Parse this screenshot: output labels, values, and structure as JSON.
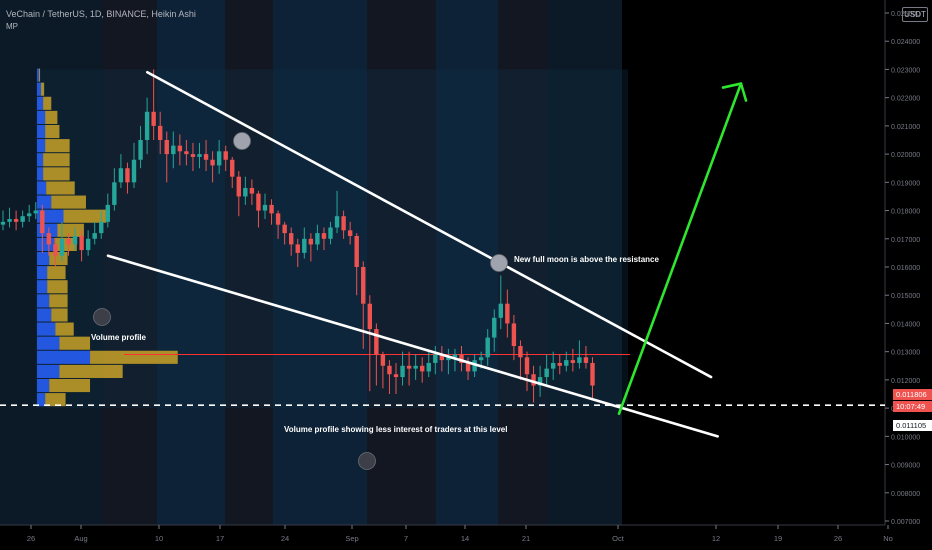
{
  "header": {
    "title": "VeChain / TetherUS, 1D, BINANCE, Heikin Ashi",
    "indicator": "MP",
    "currency_badge": "USDT"
  },
  "annotations": {
    "volume_profile": "Volume profile",
    "full_moon": "New full moon is above the resistance",
    "less_interest": "Volume profile showing less interest of traders at this level"
  },
  "price_tags": {
    "last_price": "0.011806",
    "countdown": "10:07:49",
    "dashed_level": "0.011105"
  },
  "colors": {
    "bull": "#26a69a",
    "bear": "#ef5350",
    "trendline": "#ffffff",
    "projection_arrow": "#2ee62e",
    "poc_line": "#ff3030",
    "profile_up": "#2962ff",
    "profile_down": "#c9a227"
  },
  "chart_data": {
    "type": "candlestick",
    "style": "Heikin Ashi",
    "symbol": "VeChain / TetherUS",
    "timeframe": "1D",
    "exchange": "BINANCE",
    "x_tick_labels": [
      "26",
      "Aug",
      "10",
      "17",
      "24",
      "Sep",
      "7",
      "14",
      "21",
      "Oct",
      "12",
      "19",
      "26",
      "No"
    ],
    "y_tick_labels": [
      "0.025000",
      "0.024000",
      "0.023000",
      "0.022000",
      "0.021000",
      "0.020000",
      "0.019000",
      "0.018000",
      "0.017000",
      "0.016000",
      "0.015000",
      "0.014000",
      "0.013000",
      "0.012000",
      "0.011000",
      "0.010000",
      "0.009000",
      "0.008000",
      "0.007000"
    ],
    "ylim": [
      0.0069,
      0.0262
    ],
    "candles": [
      [
        0.0175,
        0.0176,
        0.018,
        0.0173
      ],
      [
        0.0176,
        0.0177,
        0.0181,
        0.0174
      ],
      [
        0.0177,
        0.0176,
        0.018,
        0.0173
      ],
      [
        0.0176,
        0.0178,
        0.018,
        0.0174
      ],
      [
        0.0178,
        0.0179,
        0.0182,
        0.0176
      ],
      [
        0.0179,
        0.018,
        0.0183,
        0.0177
      ],
      [
        0.018,
        0.0172,
        0.0182,
        0.0165
      ],
      [
        0.0172,
        0.0168,
        0.0174,
        0.0164
      ],
      [
        0.0168,
        0.0164,
        0.017,
        0.016
      ],
      [
        0.0164,
        0.017,
        0.0176,
        0.0162
      ],
      [
        0.017,
        0.0168,
        0.0172,
        0.0164
      ],
      [
        0.0168,
        0.0171,
        0.0174,
        0.0166
      ],
      [
        0.0171,
        0.0166,
        0.0173,
        0.0162
      ],
      [
        0.0166,
        0.017,
        0.0173,
        0.0164
      ],
      [
        0.017,
        0.0172,
        0.0176,
        0.0168
      ],
      [
        0.0172,
        0.0176,
        0.018,
        0.017
      ],
      [
        0.0176,
        0.0182,
        0.0186,
        0.0174
      ],
      [
        0.0182,
        0.019,
        0.0195,
        0.018
      ],
      [
        0.019,
        0.0195,
        0.02,
        0.0188
      ],
      [
        0.0195,
        0.019,
        0.0197,
        0.0186
      ],
      [
        0.019,
        0.0198,
        0.0204,
        0.0188
      ],
      [
        0.0198,
        0.0205,
        0.021,
        0.0195
      ],
      [
        0.0205,
        0.0215,
        0.022,
        0.02
      ],
      [
        0.0215,
        0.021,
        0.023,
        0.0205
      ],
      [
        0.021,
        0.0205,
        0.0215,
        0.02
      ],
      [
        0.0205,
        0.02,
        0.0208,
        0.019
      ],
      [
        0.02,
        0.0203,
        0.0208,
        0.0195
      ],
      [
        0.0203,
        0.0201,
        0.0207,
        0.0196
      ],
      [
        0.0201,
        0.02,
        0.0205,
        0.0196
      ],
      [
        0.02,
        0.0199,
        0.0204,
        0.0194
      ],
      [
        0.0199,
        0.02,
        0.0204,
        0.0195
      ],
      [
        0.02,
        0.0198,
        0.0205,
        0.0194
      ],
      [
        0.0198,
        0.0196,
        0.0201,
        0.019
      ],
      [
        0.0196,
        0.0201,
        0.0205,
        0.0193
      ],
      [
        0.0201,
        0.0198,
        0.0203,
        0.0194
      ],
      [
        0.0198,
        0.0192,
        0.0199,
        0.0188
      ],
      [
        0.0192,
        0.0185,
        0.0194,
        0.0178
      ],
      [
        0.0185,
        0.0188,
        0.0192,
        0.0182
      ],
      [
        0.0188,
        0.0186,
        0.0191,
        0.0182
      ],
      [
        0.0186,
        0.018,
        0.0187,
        0.0174
      ],
      [
        0.018,
        0.0182,
        0.0186,
        0.0177
      ],
      [
        0.0182,
        0.0179,
        0.0184,
        0.0175
      ],
      [
        0.0179,
        0.0175,
        0.018,
        0.017
      ],
      [
        0.0175,
        0.0172,
        0.0176,
        0.0168
      ],
      [
        0.0172,
        0.0168,
        0.0174,
        0.0164
      ],
      [
        0.0168,
        0.0165,
        0.017,
        0.016
      ],
      [
        0.0165,
        0.017,
        0.0174,
        0.0163
      ],
      [
        0.017,
        0.0168,
        0.0172,
        0.0162
      ],
      [
        0.0168,
        0.0172,
        0.0175,
        0.0166
      ],
      [
        0.0172,
        0.017,
        0.0174,
        0.0166
      ],
      [
        0.017,
        0.0174,
        0.0176,
        0.0168
      ],
      [
        0.0174,
        0.0178,
        0.0187,
        0.0172
      ],
      [
        0.0178,
        0.0173,
        0.018,
        0.017
      ],
      [
        0.0173,
        0.0171,
        0.0176,
        0.0168
      ],
      [
        0.0171,
        0.016,
        0.0172,
        0.015
      ],
      [
        0.016,
        0.0147,
        0.0162,
        0.0131
      ],
      [
        0.0147,
        0.0138,
        0.015,
        0.0116
      ],
      [
        0.0138,
        0.0129,
        0.014,
        0.0118
      ],
      [
        0.0129,
        0.0125,
        0.013,
        0.0117
      ],
      [
        0.0125,
        0.0122,
        0.0127,
        0.0115
      ],
      [
        0.0122,
        0.0121,
        0.0126,
        0.0115
      ],
      [
        0.0121,
        0.0125,
        0.013,
        0.0118
      ],
      [
        0.0125,
        0.0124,
        0.013,
        0.0118
      ],
      [
        0.0124,
        0.0125,
        0.0129,
        0.012
      ],
      [
        0.0125,
        0.0123,
        0.0128,
        0.0119
      ],
      [
        0.0123,
        0.0126,
        0.013,
        0.0121
      ],
      [
        0.0126,
        0.0129,
        0.0132,
        0.0122
      ],
      [
        0.0129,
        0.0127,
        0.0132,
        0.0123
      ],
      [
        0.0127,
        0.0128,
        0.0131,
        0.0122
      ],
      [
        0.0128,
        0.0129,
        0.0131,
        0.0123
      ],
      [
        0.0129,
        0.0126,
        0.0132,
        0.0123
      ],
      [
        0.0126,
        0.0123,
        0.0128,
        0.012
      ],
      [
        0.0123,
        0.0127,
        0.0129,
        0.0121
      ],
      [
        0.0127,
        0.0128,
        0.013,
        0.0124
      ],
      [
        0.0128,
        0.0135,
        0.0138,
        0.0125
      ],
      [
        0.0135,
        0.0142,
        0.0145,
        0.013
      ],
      [
        0.0142,
        0.0147,
        0.0157,
        0.0138
      ],
      [
        0.0147,
        0.014,
        0.0152,
        0.0135
      ],
      [
        0.014,
        0.0132,
        0.0143,
        0.0127
      ],
      [
        0.0132,
        0.0128,
        0.0134,
        0.012
      ],
      [
        0.0128,
        0.0122,
        0.013,
        0.0116
      ],
      [
        0.0122,
        0.0118,
        0.0125,
        0.0112
      ],
      [
        0.0118,
        0.0121,
        0.0125,
        0.0114
      ],
      [
        0.0121,
        0.0124,
        0.0129,
        0.0118
      ],
      [
        0.0124,
        0.0126,
        0.013,
        0.012
      ],
      [
        0.0126,
        0.0125,
        0.0129,
        0.0122
      ],
      [
        0.0125,
        0.0127,
        0.013,
        0.0123
      ],
      [
        0.0127,
        0.0126,
        0.0131,
        0.0123
      ],
      [
        0.0126,
        0.0128,
        0.0134,
        0.0124
      ],
      [
        0.0128,
        0.0126,
        0.0132,
        0.0124
      ],
      [
        0.0126,
        0.0118,
        0.0128,
        0.0113
      ]
    ],
    "volume_profile": {
      "price_bins": [
        0.0228,
        0.0223,
        0.0218,
        0.0213,
        0.0208,
        0.0203,
        0.0198,
        0.0193,
        0.0188,
        0.0183,
        0.0178,
        0.0173,
        0.0168,
        0.0163,
        0.0158,
        0.0153,
        0.0148,
        0.0143,
        0.0138,
        0.0133,
        0.0128,
        0.0123,
        0.0118,
        0.0113
      ],
      "up_volume": [
        2,
        4,
        6,
        8,
        8,
        8,
        6,
        6,
        9,
        14,
        26,
        20,
        17,
        12,
        10,
        10,
        12,
        14,
        18,
        22,
        52,
        22,
        12,
        8
      ],
      "down_volume": [
        1,
        3,
        8,
        12,
        14,
        24,
        26,
        26,
        28,
        34,
        42,
        26,
        22,
        18,
        18,
        20,
        18,
        16,
        18,
        30,
        86,
        62,
        40,
        20
      ],
      "point_of_control": 0.0129
    },
    "trendlines": [
      {
        "name": "resistance",
        "from": [
          6,
          0.0229
        ],
        "to": [
          102,
          0.0121
        ]
      },
      {
        "name": "support",
        "from": [
          0,
          0.0164
        ],
        "to": [
          103,
          0.01
        ]
      }
    ],
    "projection_arrow": {
      "from": [
        88,
        0.0108
      ],
      "to": [
        107,
        0.0225
      ]
    },
    "point_of_control_line": 0.0129,
    "dashed_level": 0.011105,
    "last_price": 0.011806,
    "moon_markers": [
      {
        "date_index": 33,
        "price": 0.0212
      },
      {
        "date_index": 73,
        "price": 0.0168
      },
      {
        "date_index": 14,
        "price": 0.0142
      },
      {
        "date_index": 52,
        "price": 0.0096
      }
    ]
  }
}
